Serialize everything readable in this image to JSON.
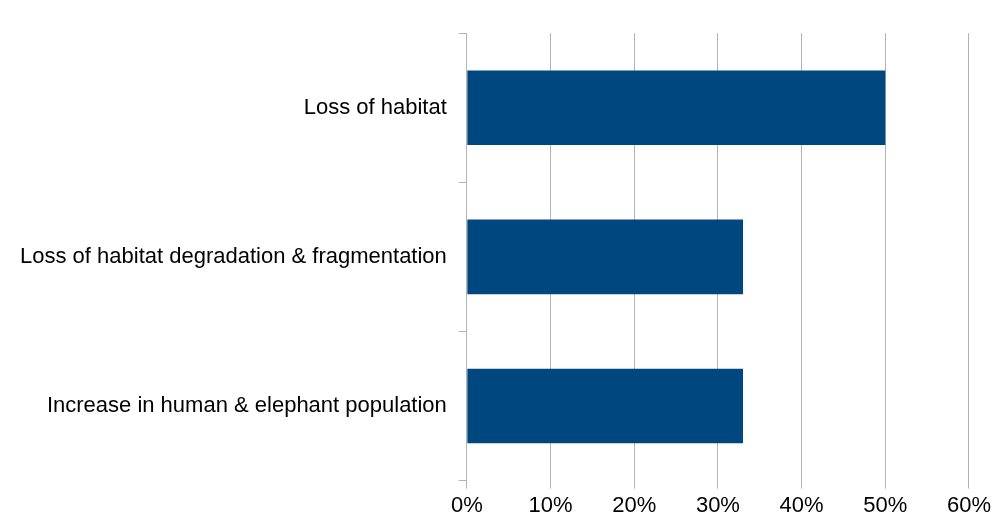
{
  "chart_data": {
    "type": "bar",
    "orientation": "horizontal",
    "categories": [
      "Loss of habitat",
      "Loss of habitat degradation & fragmentation",
      "Increase in human & elephant population"
    ],
    "values": [
      50,
      33,
      33
    ],
    "color": "#00467f",
    "xlim": [
      0,
      60
    ],
    "xticks": [
      {
        "value": 0,
        "label": "0%"
      },
      {
        "value": 10,
        "label": "10%"
      },
      {
        "value": 20,
        "label": "20%"
      },
      {
        "value": 30,
        "label": "30%"
      },
      {
        "value": 40,
        "label": "40%"
      },
      {
        "value": 50,
        "label": "50%"
      },
      {
        "value": 60,
        "label": "60%"
      }
    ],
    "grid": "x",
    "legend": false
  }
}
